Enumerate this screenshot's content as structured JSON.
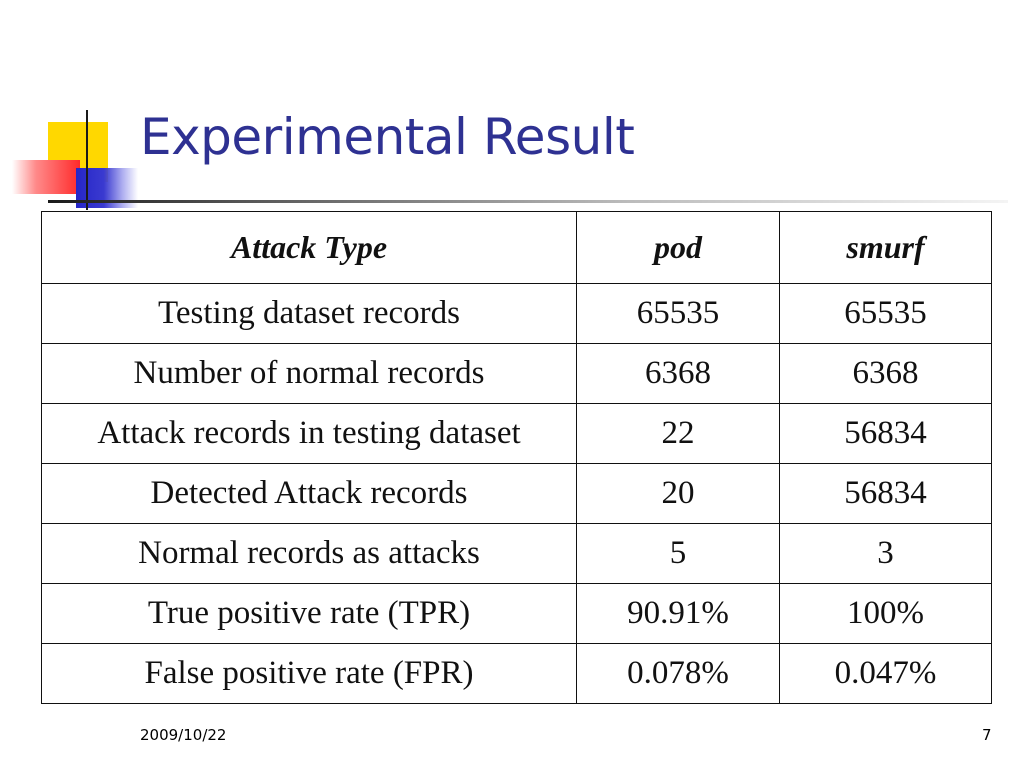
{
  "slide": {
    "title": "Experimental Result",
    "date": "2009/10/22",
    "page_number": "7"
  },
  "table": {
    "headers": [
      "Attack Type",
      "pod",
      "smurf"
    ],
    "rows": [
      [
        "Testing dataset records",
        "65535",
        "65535"
      ],
      [
        "Number of normal records",
        "6368",
        "6368"
      ],
      [
        "Attack records in testing dataset",
        "22",
        "56834"
      ],
      [
        "Detected Attack records",
        "20",
        "56834"
      ],
      [
        "Normal records as attacks",
        "5",
        "3"
      ],
      [
        "True positive rate (TPR)",
        "90.91%",
        "100%"
      ],
      [
        "False positive rate (FPR)",
        "0.078%",
        "0.047%"
      ]
    ]
  },
  "colors": {
    "title": "#2e3192",
    "deco_yellow": "#ffd800",
    "deco_red": "#ff2a2a",
    "deco_blue": "#2626c8"
  }
}
